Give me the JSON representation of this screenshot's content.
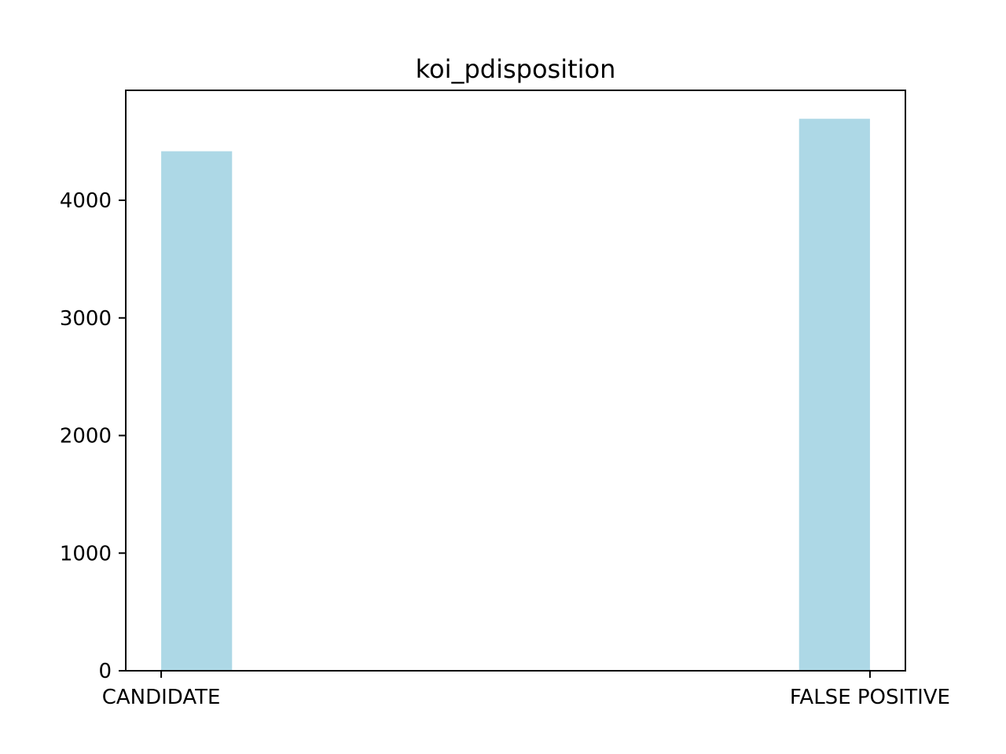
{
  "chart_data": {
    "type": "bar",
    "title": "koi_pdisposition",
    "xlabel": "",
    "ylabel": "",
    "categories": [
      "CANDIDATE",
      "FALSE POSITIVE"
    ],
    "values": [
      4417,
      4693
    ],
    "ylim": [
      0,
      4935
    ],
    "yticks": [
      0,
      1000,
      2000,
      3000,
      4000
    ],
    "ytick_labels": [
      "0",
      "1000",
      "2000",
      "3000",
      "4000"
    ],
    "grid": false,
    "legend": "none",
    "bar_color": "#add8e6"
  }
}
